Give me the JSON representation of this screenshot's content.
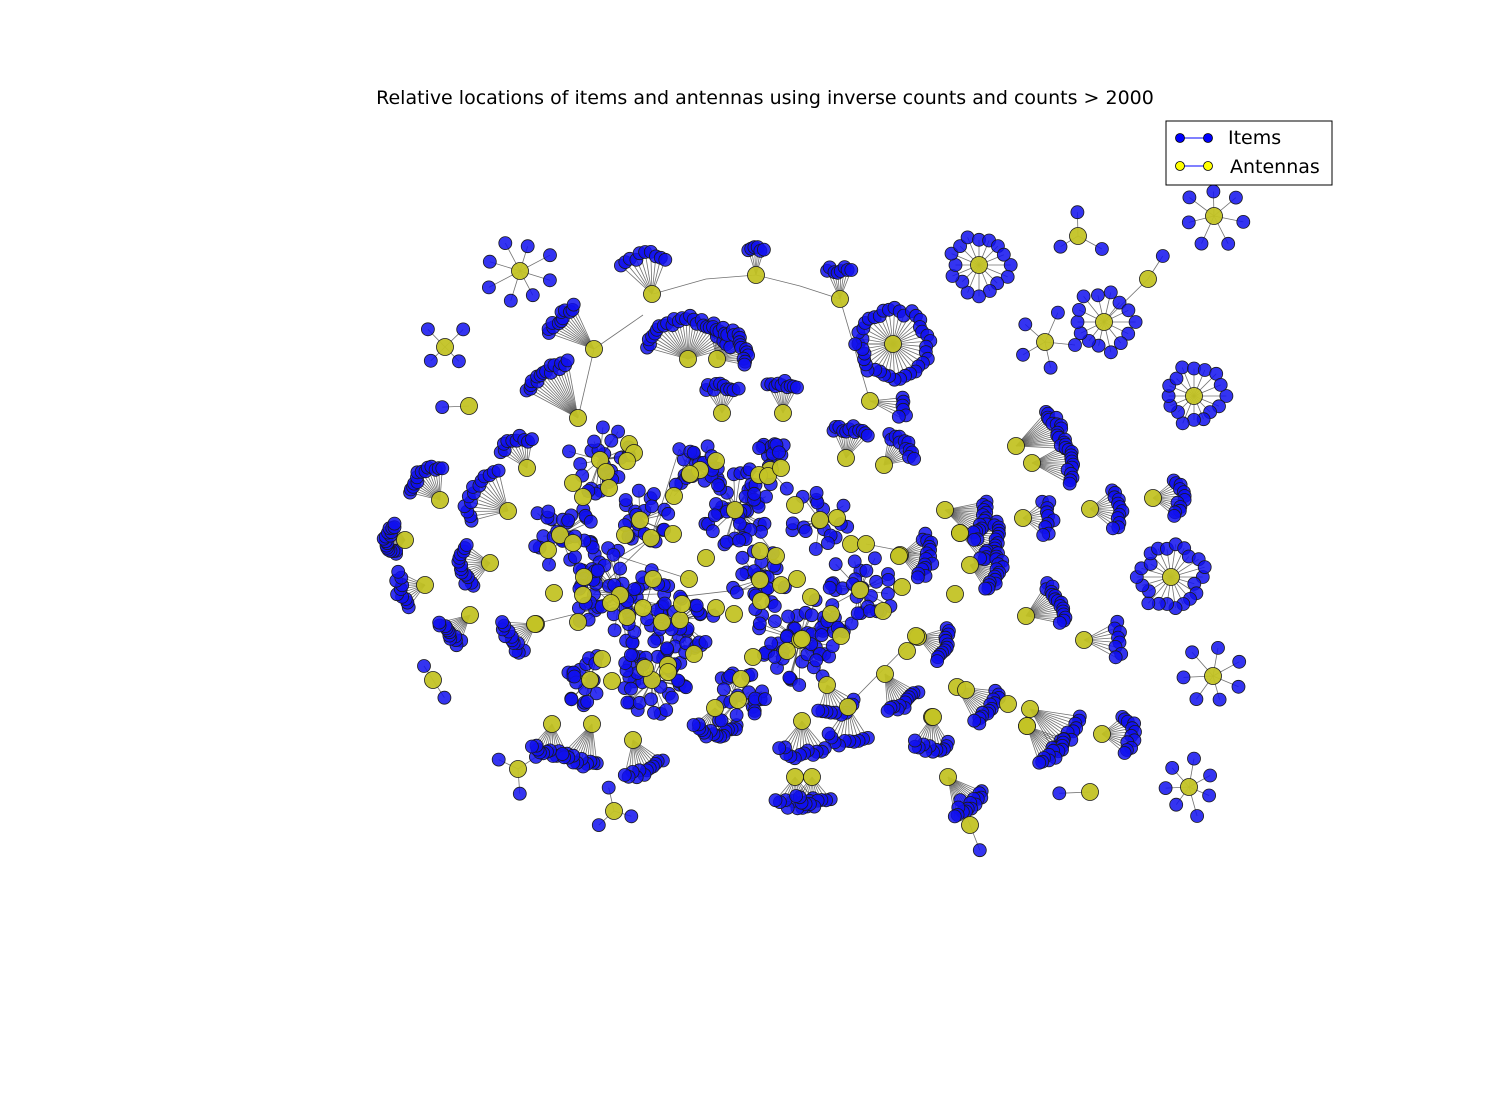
{
  "title": "Relative locations of items and antennas using inverse counts and counts > 2000",
  "legend": {
    "items_label": "Items",
    "antennas_label": "Antennas"
  },
  "colors": {
    "item": "#1010ee",
    "antenna": "#c3c325",
    "item_legend": "#0000ff",
    "antenna_legend": "#ffff00",
    "edge": "#404040",
    "node_stroke": "#1a1a1a"
  },
  "legend_placement": "top-right"
}
